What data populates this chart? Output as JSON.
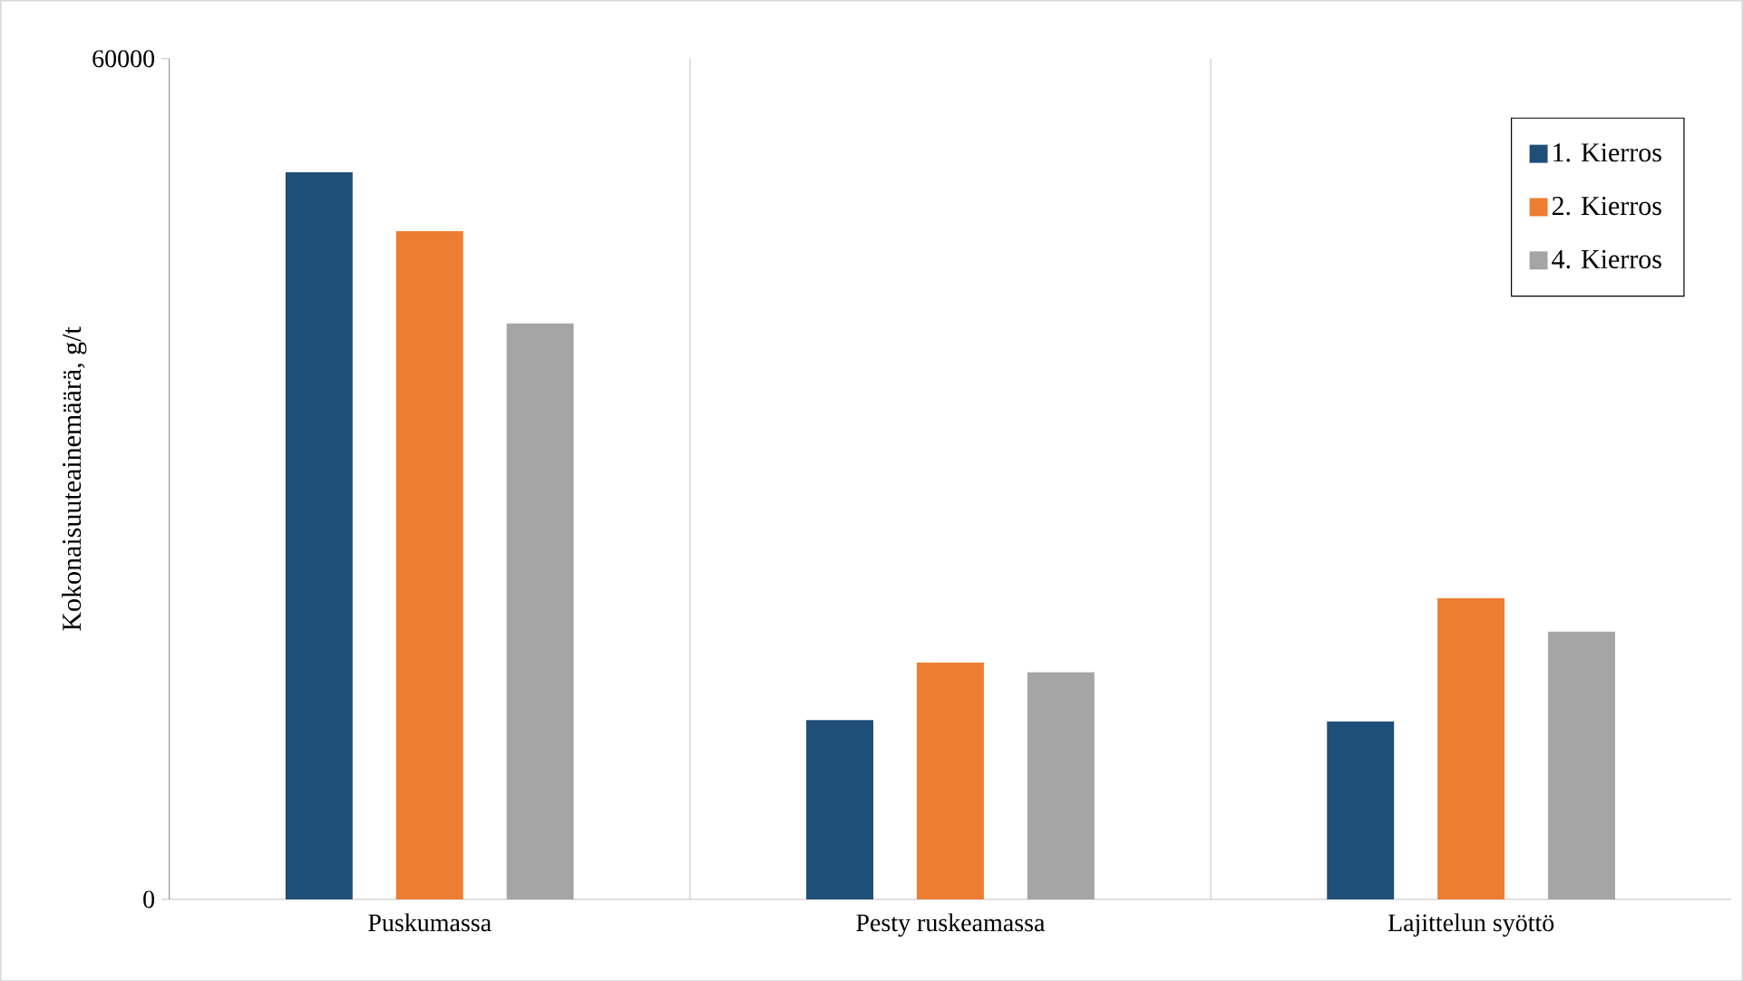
{
  "chart_data": {
    "type": "bar",
    "ylabel": "Kokonaisuuteainemäärä, g/t",
    "categories": [
      "Puskumassa",
      "Pesty ruskeamassa",
      "Lajittelun syöttö"
    ],
    "series": [
      {
        "name": "1. Kierros",
        "color": "#1f4e79",
        "values": [
          51900,
          12800,
          12700
        ]
      },
      {
        "name": "2. Kierros",
        "color": "#ed7d31",
        "values": [
          47700,
          16900,
          21500
        ]
      },
      {
        "name": "4. Kierros",
        "color": "#a5a5a5",
        "values": [
          41100,
          16200,
          19100
        ]
      }
    ],
    "ylim": [
      0,
      60000
    ],
    "yticks": [
      0,
      60000
    ],
    "grid": "x",
    "legend": "top right"
  }
}
